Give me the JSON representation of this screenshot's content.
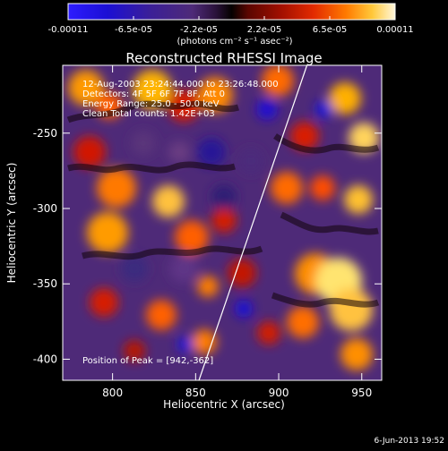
{
  "chart_data": {
    "type": "heatmap",
    "title": "Reconstructed RHESSI Image",
    "xlabel": "Heliocentric X (arcsec)",
    "ylabel": "Heliocentric Y (arcsec)",
    "xlim": [
      770,
      962
    ],
    "ylim": [
      -414,
      -205
    ],
    "xticks": [
      800,
      850,
      900,
      950
    ],
    "yticks": [
      -250,
      -300,
      -350,
      -400
    ],
    "colorbar": {
      "ticks": [
        "-0.00011",
        "-6.5e-05",
        "-2.2e-05",
        "2.2e-05",
        "6.5e-05",
        "0.00011"
      ],
      "label": "(photons cm⁻² s⁻¹ asec⁻²)",
      "min": -0.00011,
      "max": 0.00011
    },
    "annotations": [
      "12-Aug-2003 23:24:44.000 to 23:26:48.000",
      "Detectors: 4F 5F 6F 7F 8F, Att 0",
      "Energy Range: 25.0 - 50.0 keV",
      "Clean     Total counts: 1.42E+03"
    ],
    "peak_label": "Position of Peak = [942,-362]",
    "peak_position": [
      942,
      -362
    ],
    "limb_line": {
      "points": [
        [
          852,
          -414
        ],
        [
          917,
          -205
        ]
      ]
    },
    "timestamp": "6-Jun-2013 19:52"
  }
}
